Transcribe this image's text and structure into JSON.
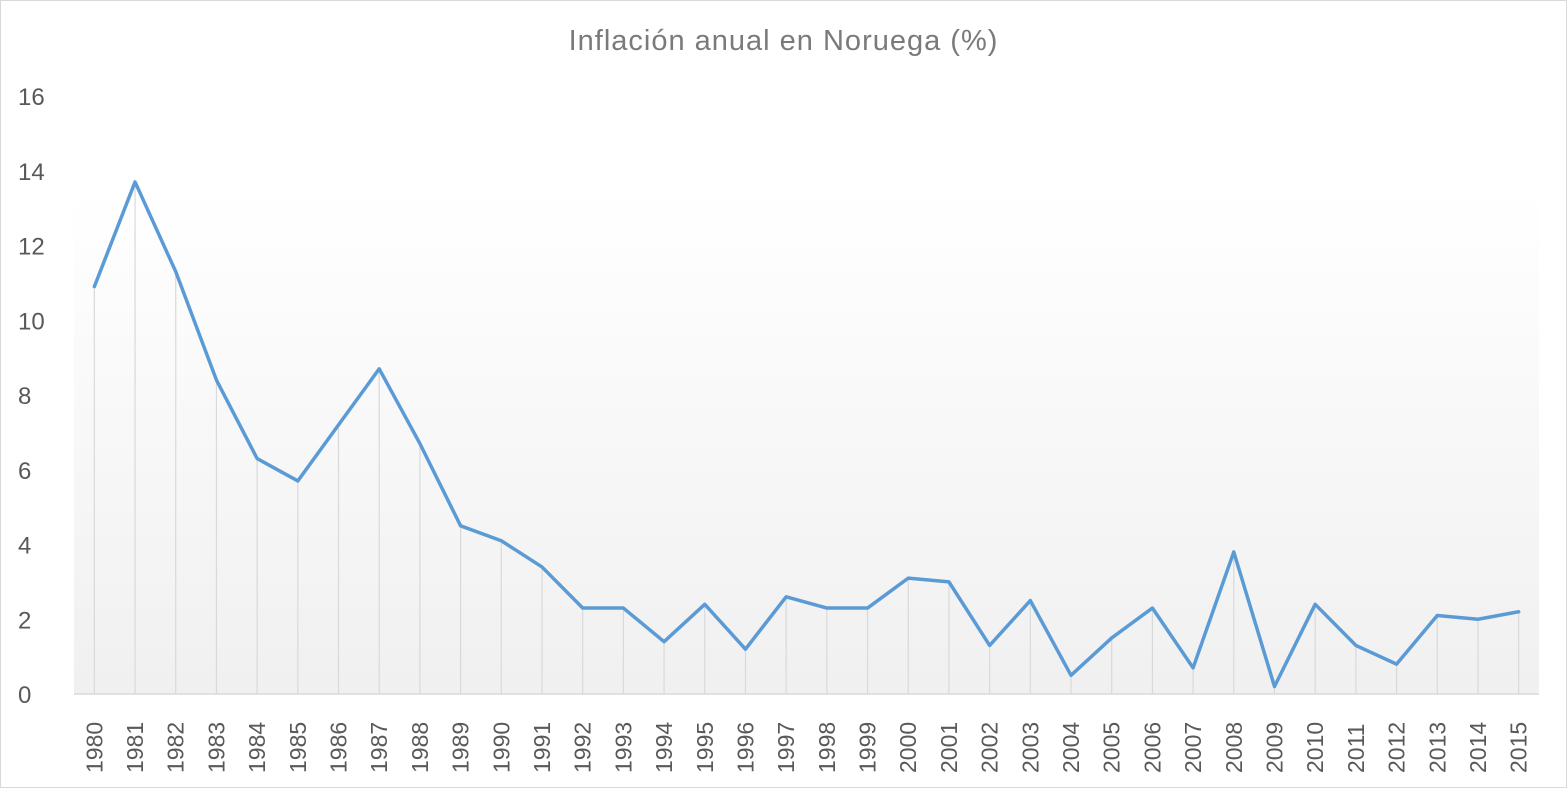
{
  "chart_data": {
    "type": "line",
    "title": "Inflación anual en Noruega (%)",
    "xlabel": "",
    "ylabel": "",
    "ylim": [
      0,
      16
    ],
    "yticks": [
      0,
      2,
      4,
      6,
      8,
      10,
      12,
      14,
      16
    ],
    "grid": "vertical drop lines",
    "legend": "none",
    "categories": [
      "1980",
      "1981",
      "1982",
      "1983",
      "1984",
      "1985",
      "1986",
      "1987",
      "1988",
      "1989",
      "1990",
      "1991",
      "1992",
      "1993",
      "1994",
      "1995",
      "1996",
      "1997",
      "1998",
      "1999",
      "2000",
      "2001",
      "2002",
      "2003",
      "2004",
      "2005",
      "2006",
      "2007",
      "2008",
      "2009",
      "2010",
      "2011",
      "2012",
      "2013",
      "2014",
      "2015"
    ],
    "series": [
      {
        "color": "#5b9bd5",
        "values": [
          10.9,
          13.7,
          11.3,
          8.4,
          6.3,
          5.7,
          7.2,
          8.7,
          6.7,
          4.5,
          4.1,
          3.4,
          2.3,
          2.3,
          1.4,
          2.4,
          1.2,
          2.6,
          2.3,
          2.3,
          3.1,
          3.0,
          1.3,
          2.5,
          0.5,
          1.5,
          2.3,
          0.7,
          3.8,
          0.2,
          2.4,
          1.3,
          0.8,
          2.1,
          2.0,
          2.2
        ]
      }
    ]
  }
}
